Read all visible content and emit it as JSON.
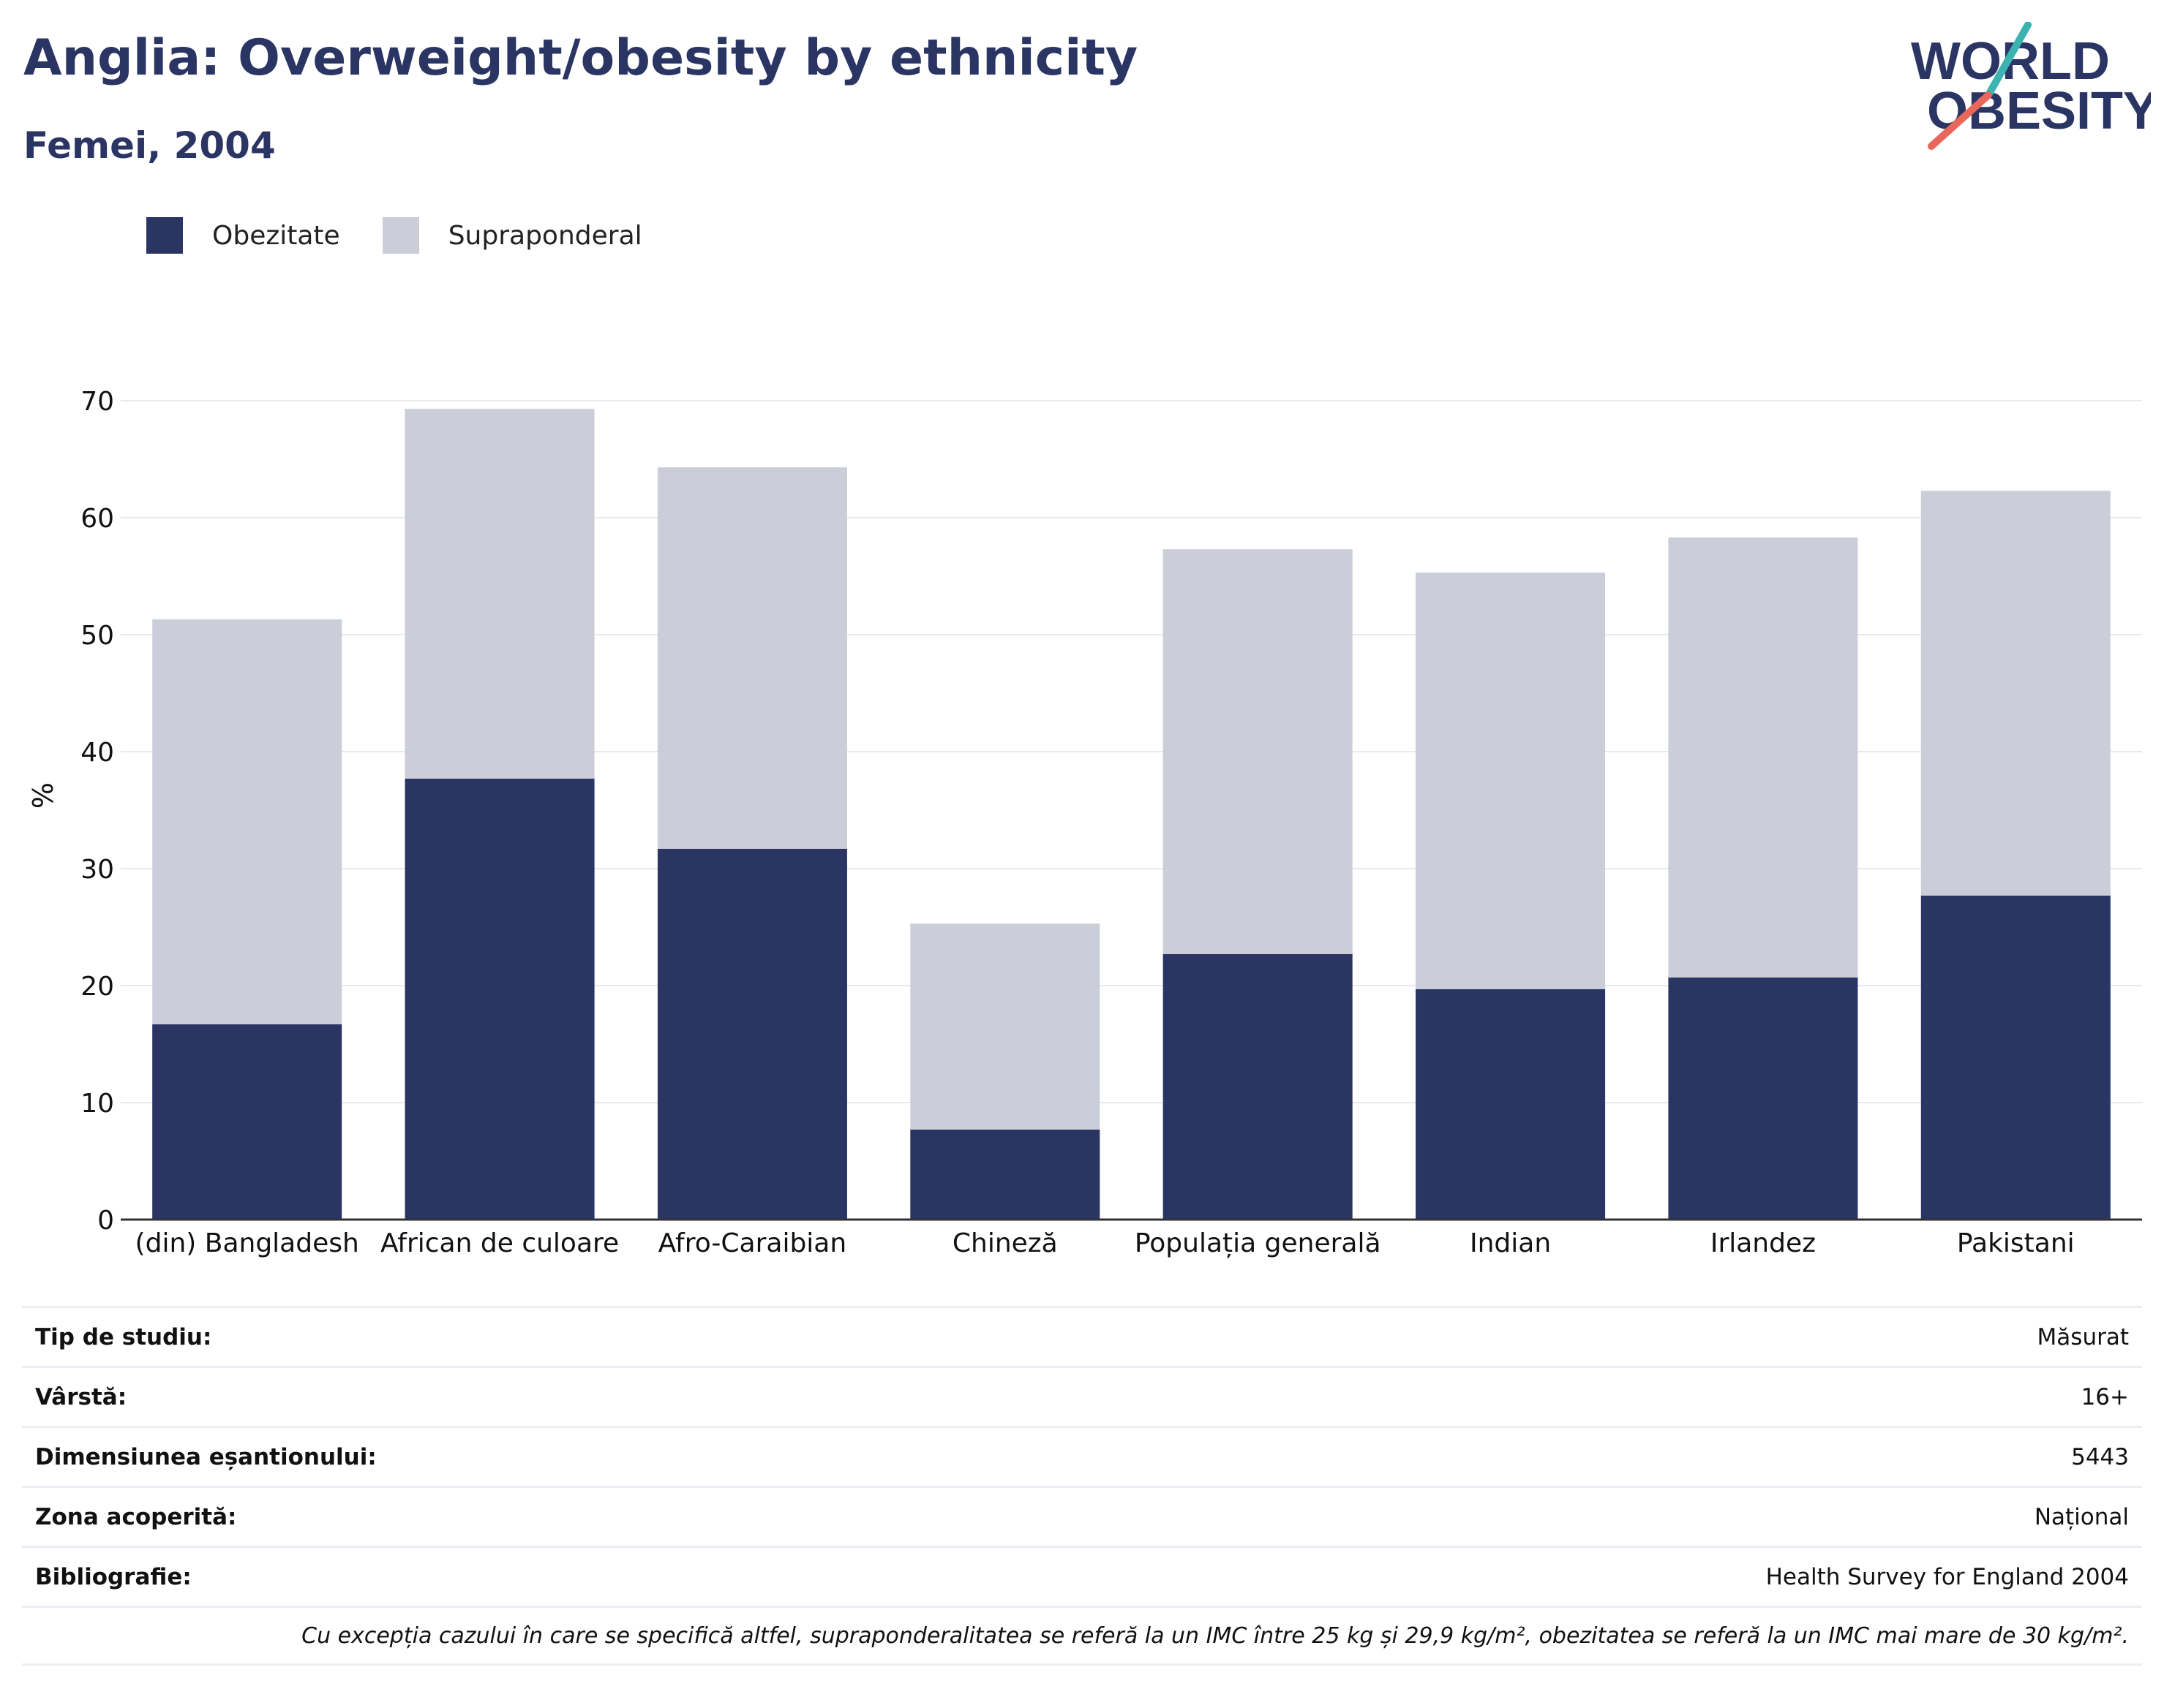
{
  "title": "Anglia: Overweight/obesity by ethnicity",
  "subtitle": "Femei, 2004",
  "logo": {
    "line1": "WORLD",
    "line2": "OBESITY"
  },
  "colors": {
    "obese": "#2a3564",
    "overweight": "#cbcdd8",
    "title": "#2a3564",
    "logo_teal": "#3bb3b0",
    "logo_coral": "#e8675a"
  },
  "chart_data": {
    "type": "bar",
    "stacked": true,
    "categories": [
      "(din) Bangladesh",
      "African de culoare",
      "Afro-Caraibian",
      "Chineză",
      "Populația generală",
      "Indian",
      "Irlandez",
      "Pakistani"
    ],
    "series": [
      {
        "name": "Obezitate",
        "values": [
          16.7,
          37.7,
          31.7,
          7.7,
          22.7,
          19.7,
          20.7,
          27.7
        ]
      },
      {
        "name": "Supraponderal",
        "values": [
          34.6,
          31.6,
          32.6,
          17.6,
          34.6,
          35.6,
          37.6,
          34.6
        ]
      }
    ],
    "ylabel": "%",
    "xlabel": "",
    "ylim": [
      0,
      70
    ],
    "yticks": [
      0,
      10,
      20,
      30,
      40,
      50,
      60,
      70
    ],
    "grid": true,
    "legend_position": "top-left"
  },
  "info": [
    {
      "label": "Tip de studiu:",
      "value": "Măsurat"
    },
    {
      "label": "Vârstă:",
      "value": "16+"
    },
    {
      "label": "Dimensiunea eșantionului:",
      "value": "5443"
    },
    {
      "label": "Zona acoperită:",
      "value": "Național"
    },
    {
      "label": "Bibliografie:",
      "value": "Health Survey for England 2004"
    }
  ],
  "footnote": "Cu excepția cazului în care se specifică altfel, supraponderalitatea se referă la un IMC între 25 kg și 29,9 kg/m², obezitatea se referă la un IMC mai mare de 30 kg/m²."
}
